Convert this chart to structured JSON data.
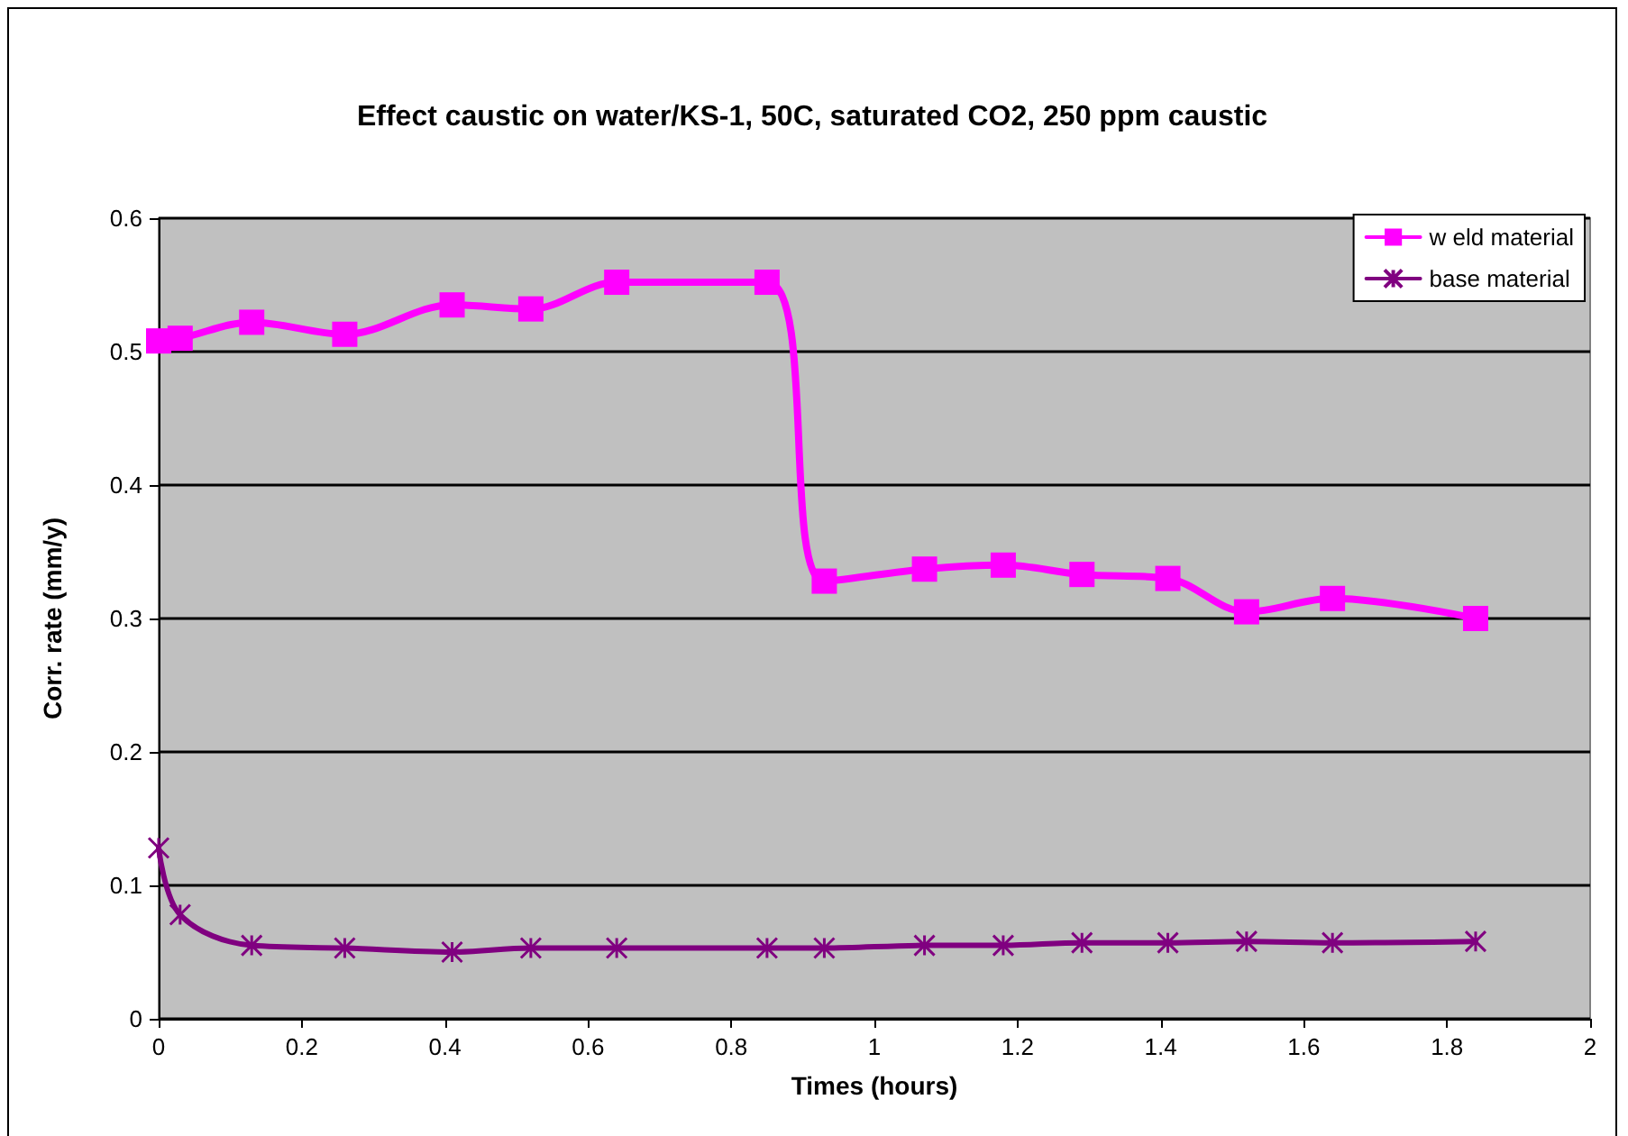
{
  "chart_data": {
    "type": "line",
    "title": "Effect caustic on water/KS-1, 50C, saturated CO2, 250 ppm caustic",
    "xlabel": "Times (hours)",
    "ylabel": "Corr. rate (mm/y)",
    "x": [
      0,
      0.03,
      0.13,
      0.26,
      0.41,
      0.52,
      0.64,
      0.85,
      0.93,
      1.07,
      1.18,
      1.29,
      1.41,
      1.52,
      1.64,
      1.84
    ],
    "series": [
      {
        "name": "w eld material",
        "color": "#ff00ff",
        "marker": "square",
        "values": [
          0.508,
          0.51,
          0.522,
          0.513,
          0.535,
          0.532,
          0.552,
          0.552,
          0.328,
          0.337,
          0.34,
          0.333,
          0.33,
          0.305,
          0.315,
          0.3
        ]
      },
      {
        "name": "base material",
        "color": "#800080",
        "marker": "cross",
        "values": [
          0.128,
          0.078,
          0.055,
          0.053,
          0.05,
          0.053,
          0.053,
          0.053,
          0.053,
          0.055,
          0.055,
          0.057,
          0.057,
          0.058,
          0.057,
          0.058
        ]
      }
    ],
    "xlim": [
      0,
      2
    ],
    "xticks": [
      0,
      0.2,
      0.4,
      0.6,
      0.8,
      1,
      1.2,
      1.4,
      1.6,
      1.8,
      2
    ],
    "ylim": [
      0,
      0.6
    ],
    "yticks": [
      0,
      0.1,
      0.2,
      0.3,
      0.4,
      0.5,
      0.6
    ],
    "grid": "y",
    "legend": "top right",
    "line_style": "solid"
  }
}
